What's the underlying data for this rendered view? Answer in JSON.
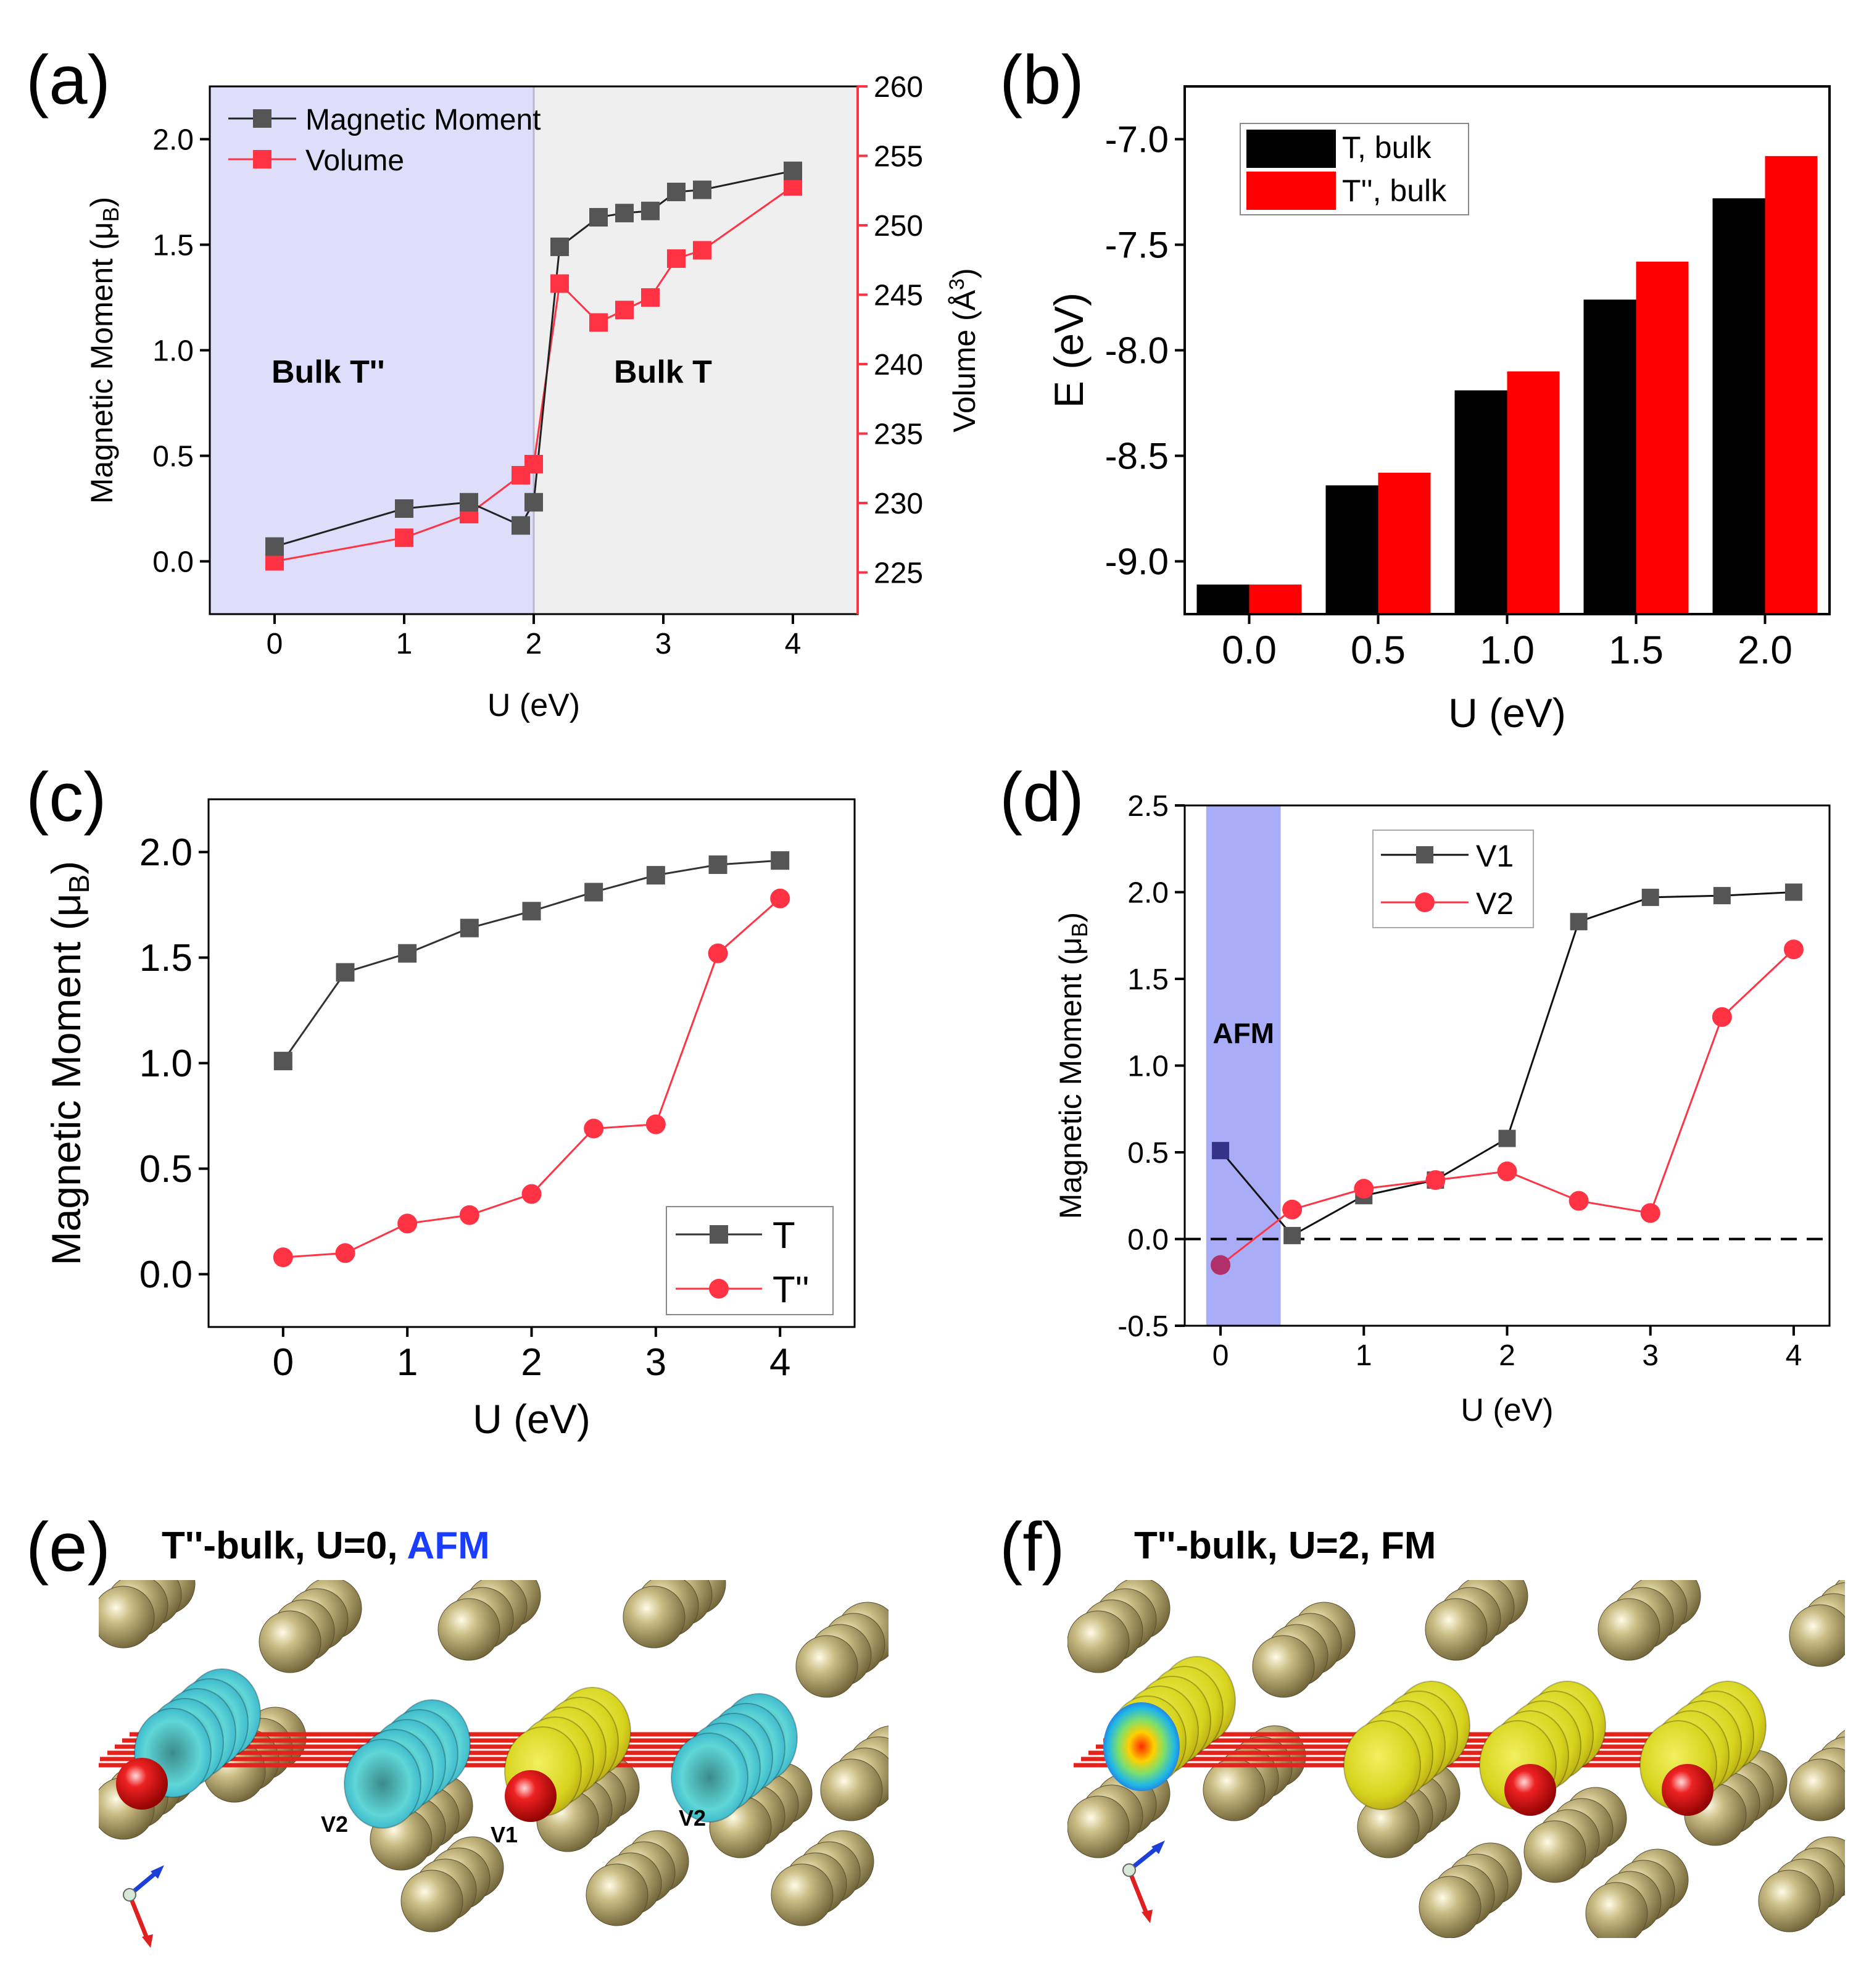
{
  "panels": {
    "a": {
      "label": "(a)"
    },
    "b": {
      "label": "(b)"
    },
    "c": {
      "label": "(c)"
    },
    "d": {
      "label": "(d)"
    },
    "e": {
      "label": "(e)",
      "title_prefix": "T''-bulk, U=0, ",
      "title_highlight": "AFM",
      "atom_labels": [
        "V2",
        "V1",
        "V2"
      ]
    },
    "f": {
      "label": "(f)",
      "title": "T''-bulk, U=2, FM"
    }
  },
  "colors": {
    "black_series": "#555555",
    "red_series": "#ff3344",
    "afm_text": "#1a3cff",
    "bulk_tpp_text": "#1f3ae0",
    "shade_a_left": "#dedefa",
    "shade_a_right": "#efefef",
    "shade_d": "#a9acf6",
    "bar_black": "#000000",
    "bar_red": "#ff0000"
  },
  "chart_data": [
    {
      "id": "a",
      "type": "line",
      "xlabel": "U (eV)",
      "ylabel": "Magnetic Moment (μB)",
      "ylabel_main": "Magnetic Moment (μ",
      "ylabel_sub": "B",
      "ylabel_close": ")",
      "y2label": "Volume (Å³)",
      "y2label_main": "Volume (Å",
      "y2label_sup": "3",
      "y2label_close": ")",
      "xlim": [
        -0.5,
        4.5
      ],
      "ylim": [
        -0.25,
        2.25
      ],
      "y2lim": [
        222,
        260
      ],
      "xticks": [
        "0",
        "1",
        "2",
        "3",
        "4"
      ],
      "yticks": [
        "0.0",
        "0.5",
        "1.0",
        "1.5",
        "2.0"
      ],
      "y2ticks": [
        "225",
        "230",
        "235",
        "240",
        "245",
        "250",
        "255",
        "260"
      ],
      "regions": [
        {
          "label": "Bulk T''",
          "from": -0.5,
          "to": 2.0
        },
        {
          "label": "Bulk T",
          "from": 2.0,
          "to": 4.5
        }
      ],
      "legend": [
        "Magnetic Moment",
        "Volume"
      ],
      "series": [
        {
          "name": "Magnetic Moment",
          "axis": "left",
          "x": [
            0,
            1,
            1.5,
            1.9,
            2.0,
            2.2,
            2.5,
            2.7,
            2.9,
            3.1,
            3.3,
            4.0
          ],
          "values": [
            0.07,
            0.25,
            0.28,
            0.17,
            0.28,
            1.49,
            1.63,
            1.65,
            1.66,
            1.75,
            1.76,
            1.85
          ]
        },
        {
          "name": "Volume",
          "axis": "right",
          "x": [
            0,
            1,
            1.5,
            1.9,
            2.0,
            2.2,
            2.5,
            2.7,
            2.9,
            3.1,
            3.3,
            4.0
          ],
          "values": [
            225.8,
            227.5,
            229.2,
            232.0,
            232.8,
            245.8,
            243.0,
            243.9,
            244.8,
            247.6,
            248.2,
            252.8
          ]
        }
      ]
    },
    {
      "id": "b",
      "type": "bar",
      "xlabel": "U (eV)",
      "ylabel": "E (eV)",
      "categories": [
        "0.0",
        "0.5",
        "1.0",
        "1.5",
        "2.0"
      ],
      "ylim": [
        -9.25,
        -6.75
      ],
      "yticks": [
        "-9.0",
        "-8.5",
        "-8.0",
        "-7.5",
        "-7.0"
      ],
      "legend": [
        "T, bulk",
        "T'', bulk"
      ],
      "series": [
        {
          "name": "T, bulk",
          "values": [
            -9.11,
            -8.64,
            -8.19,
            -7.76,
            -7.28
          ]
        },
        {
          "name": "T'', bulk",
          "values": [
            -9.11,
            -8.58,
            -8.1,
            -7.58,
            -7.08
          ]
        }
      ]
    },
    {
      "id": "c",
      "type": "line",
      "xlabel": "U (eV)",
      "ylabel": "Magnetic Moment (μB)",
      "ylabel_main": "Magnetic Moment (μ",
      "ylabel_sub": "B",
      "ylabel_close": ")",
      "xlim": [
        -0.6,
        4.6
      ],
      "ylim": [
        -0.25,
        2.25
      ],
      "xticks": [
        "0",
        "1",
        "2",
        "3",
        "4"
      ],
      "yticks": [
        "0.0",
        "0.5",
        "1.0",
        "1.5",
        "2.0"
      ],
      "legend": [
        "T",
        "T''"
      ],
      "series": [
        {
          "name": "T",
          "x": [
            0,
            0.5,
            1,
            1.5,
            2,
            2.5,
            3,
            3.5,
            4
          ],
          "values": [
            1.01,
            1.43,
            1.52,
            1.64,
            1.72,
            1.81,
            1.89,
            1.94,
            1.96
          ]
        },
        {
          "name": "T''",
          "x": [
            0,
            0.5,
            1,
            1.5,
            2,
            2.5,
            3,
            3.5,
            4
          ],
          "values": [
            0.08,
            0.1,
            0.24,
            0.28,
            0.38,
            0.69,
            0.71,
            1.52,
            1.78
          ]
        }
      ]
    },
    {
      "id": "d",
      "type": "line",
      "xlabel": "U (eV)",
      "ylabel": "Magnetic Moment (μB)",
      "ylabel_main": "Magnetic Moment (μ",
      "ylabel_sub": "B",
      "ylabel_close": ")",
      "xlim": [
        -0.25,
        4.25
      ],
      "ylim": [
        -0.5,
        2.5
      ],
      "xticks": [
        "0",
        "1",
        "2",
        "3",
        "4"
      ],
      "yticks": [
        "-0.5",
        "0.0",
        "0.5",
        "1.0",
        "1.5",
        "2.0",
        "2.5"
      ],
      "region": {
        "label": "AFM",
        "from": -0.1,
        "to": 0.42
      },
      "reference_line": 0.0,
      "legend": [
        "V1",
        "V2"
      ],
      "series": [
        {
          "name": "V1",
          "x": [
            0,
            0.5,
            1,
            1.5,
            2,
            2.5,
            3,
            3.5,
            4
          ],
          "values": [
            0.51,
            0.02,
            0.25,
            0.34,
            0.58,
            1.83,
            1.97,
            1.98,
            2.0
          ]
        },
        {
          "name": "V2",
          "x": [
            0,
            0.5,
            1,
            1.5,
            2,
            2.5,
            3,
            3.5,
            4
          ],
          "values": [
            -0.15,
            0.17,
            0.29,
            0.34,
            0.39,
            0.22,
            0.15,
            1.28,
            1.67
          ]
        }
      ]
    }
  ]
}
